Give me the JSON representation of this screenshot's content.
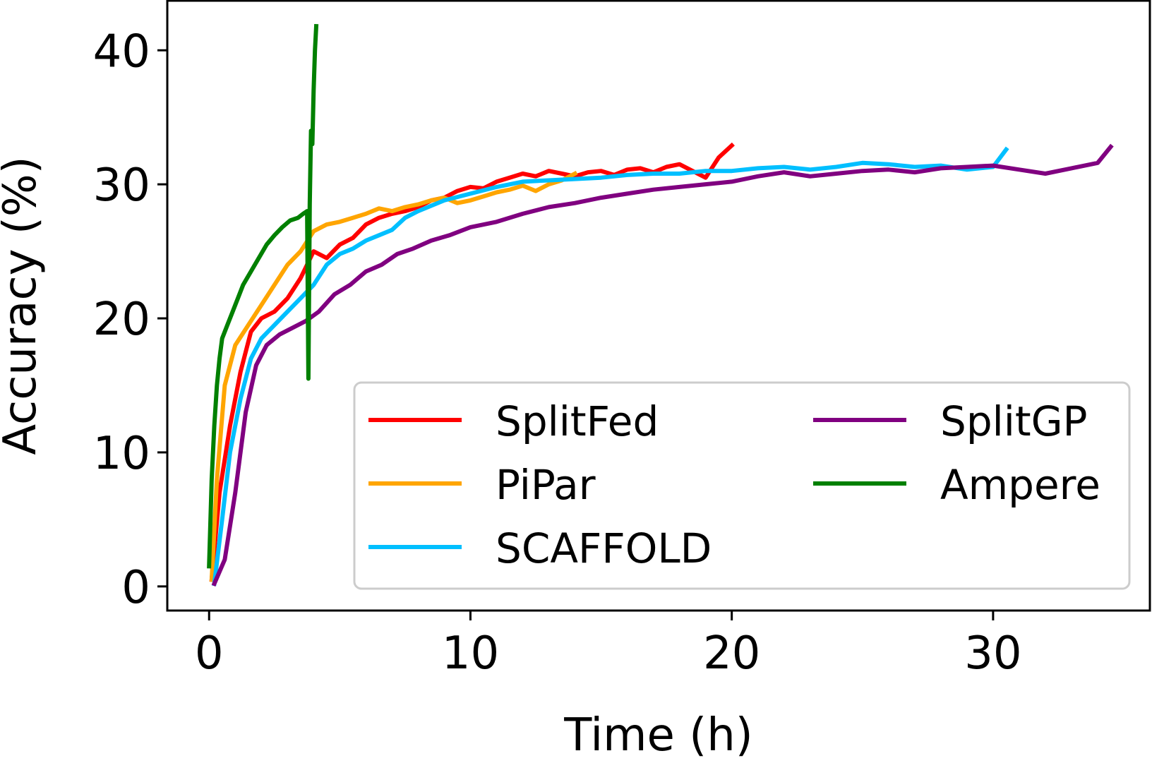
{
  "chart_data": {
    "type": "line",
    "title": "",
    "xlabel": "Time (h)",
    "ylabel": "Accuracy (%)",
    "xlim": [
      -1.6,
      36.0
    ],
    "ylim": [
      -1.8,
      43.7
    ],
    "xticks": [
      0,
      10,
      20,
      30
    ],
    "yticks": [
      0,
      10,
      20,
      30,
      40
    ],
    "grid": false,
    "legend_position": "lower-right",
    "series": [
      {
        "name": "SplitFed",
        "color": "#ff0000",
        "x": [
          0.1,
          0.4,
          0.8,
          1.2,
          1.6,
          2.0,
          2.5,
          3.0,
          3.5,
          4.0,
          4.5,
          5.0,
          5.5,
          6.0,
          6.5,
          7.0,
          7.5,
          8.0,
          8.5,
          9.0,
          9.5,
          10.0,
          10.5,
          11.0,
          11.5,
          12.0,
          12.5,
          13.0,
          13.5,
          14.0,
          14.5,
          15.0,
          15.5,
          16.0,
          16.5,
          17.0,
          17.5,
          18.0,
          18.5,
          19.0,
          19.5,
          20.0
        ],
        "y": [
          0.5,
          7,
          12,
          16,
          19,
          20,
          20.5,
          21.5,
          23,
          25,
          24.5,
          25.5,
          26,
          27,
          27.5,
          27.8,
          28,
          28.3,
          28.8,
          29,
          29.5,
          29.8,
          29.7,
          30.2,
          30.5,
          30.8,
          30.6,
          31,
          30.8,
          30.6,
          30.9,
          31,
          30.7,
          31.1,
          31.2,
          30.9,
          31.3,
          31.5,
          31,
          30.5,
          32,
          32.9
        ]
      },
      {
        "name": "PiPar",
        "color": "#ffa500",
        "x": [
          0.1,
          0.3,
          0.6,
          1.0,
          1.5,
          2.0,
          2.5,
          3.0,
          3.5,
          4.0,
          4.5,
          5.0,
          5.5,
          6.0,
          6.5,
          7.0,
          7.5,
          8.0,
          8.5,
          9.0,
          9.5,
          10.0,
          10.5,
          11.0,
          11.5,
          12.0,
          12.5,
          13.0,
          13.5,
          14.0
        ],
        "y": [
          0.5,
          8,
          15,
          18,
          19.5,
          21,
          22.5,
          24,
          25,
          26.5,
          27,
          27.2,
          27.5,
          27.8,
          28.2,
          28,
          28.3,
          28.5,
          28.8,
          29,
          28.6,
          28.8,
          29.1,
          29.4,
          29.6,
          29.9,
          29.5,
          30,
          30.3,
          30.8
        ]
      },
      {
        "name": "SCAFFOLD",
        "color": "#00bfff",
        "x": [
          0.2,
          0.5,
          0.8,
          1.2,
          1.6,
          2.0,
          2.5,
          3.0,
          3.5,
          4.0,
          4.5,
          5.0,
          5.5,
          6.0,
          6.5,
          7.0,
          7.5,
          8.0,
          9.0,
          10.0,
          11.0,
          12.0,
          13.0,
          14.0,
          15.0,
          16.0,
          17.0,
          18.0,
          19.0,
          20.0,
          21.0,
          22.0,
          23.0,
          24.0,
          25.0,
          26.0,
          27.0,
          28.0,
          29.0,
          30.0,
          30.5
        ],
        "y": [
          0.2,
          5,
          10,
          14,
          17,
          18.5,
          19.5,
          20.5,
          21.5,
          22.5,
          24,
          24.8,
          25.2,
          25.8,
          26.2,
          26.6,
          27.5,
          28,
          28.8,
          29.3,
          29.8,
          30.2,
          30.3,
          30.4,
          30.5,
          30.7,
          30.8,
          30.8,
          31,
          31,
          31.2,
          31.3,
          31.1,
          31.3,
          31.6,
          31.5,
          31.3,
          31.4,
          31.1,
          31.3,
          32.6
        ]
      },
      {
        "name": "SplitGP",
        "color": "#800080",
        "x": [
          0.2,
          0.6,
          1.0,
          1.4,
          1.8,
          2.2,
          2.7,
          3.2,
          3.7,
          4.2,
          4.8,
          5.4,
          6.0,
          6.6,
          7.2,
          7.8,
          8.5,
          9.2,
          10.0,
          11.0,
          12.0,
          13.0,
          14.0,
          15.0,
          16.0,
          17.0,
          18.0,
          19.0,
          20.0,
          21.0,
          22.0,
          23.0,
          24.0,
          25.0,
          26.0,
          27.0,
          28.0,
          29.0,
          30.0,
          31.0,
          32.0,
          33.0,
          34.0,
          34.5
        ],
        "y": [
          0.2,
          2,
          7,
          13,
          16.5,
          18,
          18.8,
          19.3,
          19.8,
          20.5,
          21.8,
          22.5,
          23.5,
          24,
          24.8,
          25.2,
          25.8,
          26.2,
          26.8,
          27.2,
          27.8,
          28.3,
          28.6,
          29,
          29.3,
          29.6,
          29.8,
          30,
          30.2,
          30.6,
          30.9,
          30.6,
          30.8,
          31,
          31.1,
          30.9,
          31.2,
          31.3,
          31.4,
          31.1,
          30.8,
          31.2,
          31.6,
          32.8
        ]
      },
      {
        "name": "Ampere",
        "color": "#008000",
        "x": [
          0.0,
          0.1,
          0.2,
          0.3,
          0.4,
          0.5,
          0.7,
          0.9,
          1.1,
          1.3,
          1.6,
          1.9,
          2.2,
          2.5,
          2.8,
          3.1,
          3.4,
          3.6,
          3.75,
          3.8,
          3.85,
          3.9,
          3.95,
          4.0,
          4.05,
          4.1
        ],
        "y": [
          1.5,
          8,
          12,
          15,
          17,
          18.5,
          19.5,
          20.5,
          21.5,
          22.5,
          23.5,
          24.5,
          25.5,
          26.2,
          26.8,
          27.3,
          27.5,
          27.8,
          28,
          15.5,
          28.5,
          34,
          33,
          37,
          40,
          41.8
        ]
      }
    ]
  }
}
